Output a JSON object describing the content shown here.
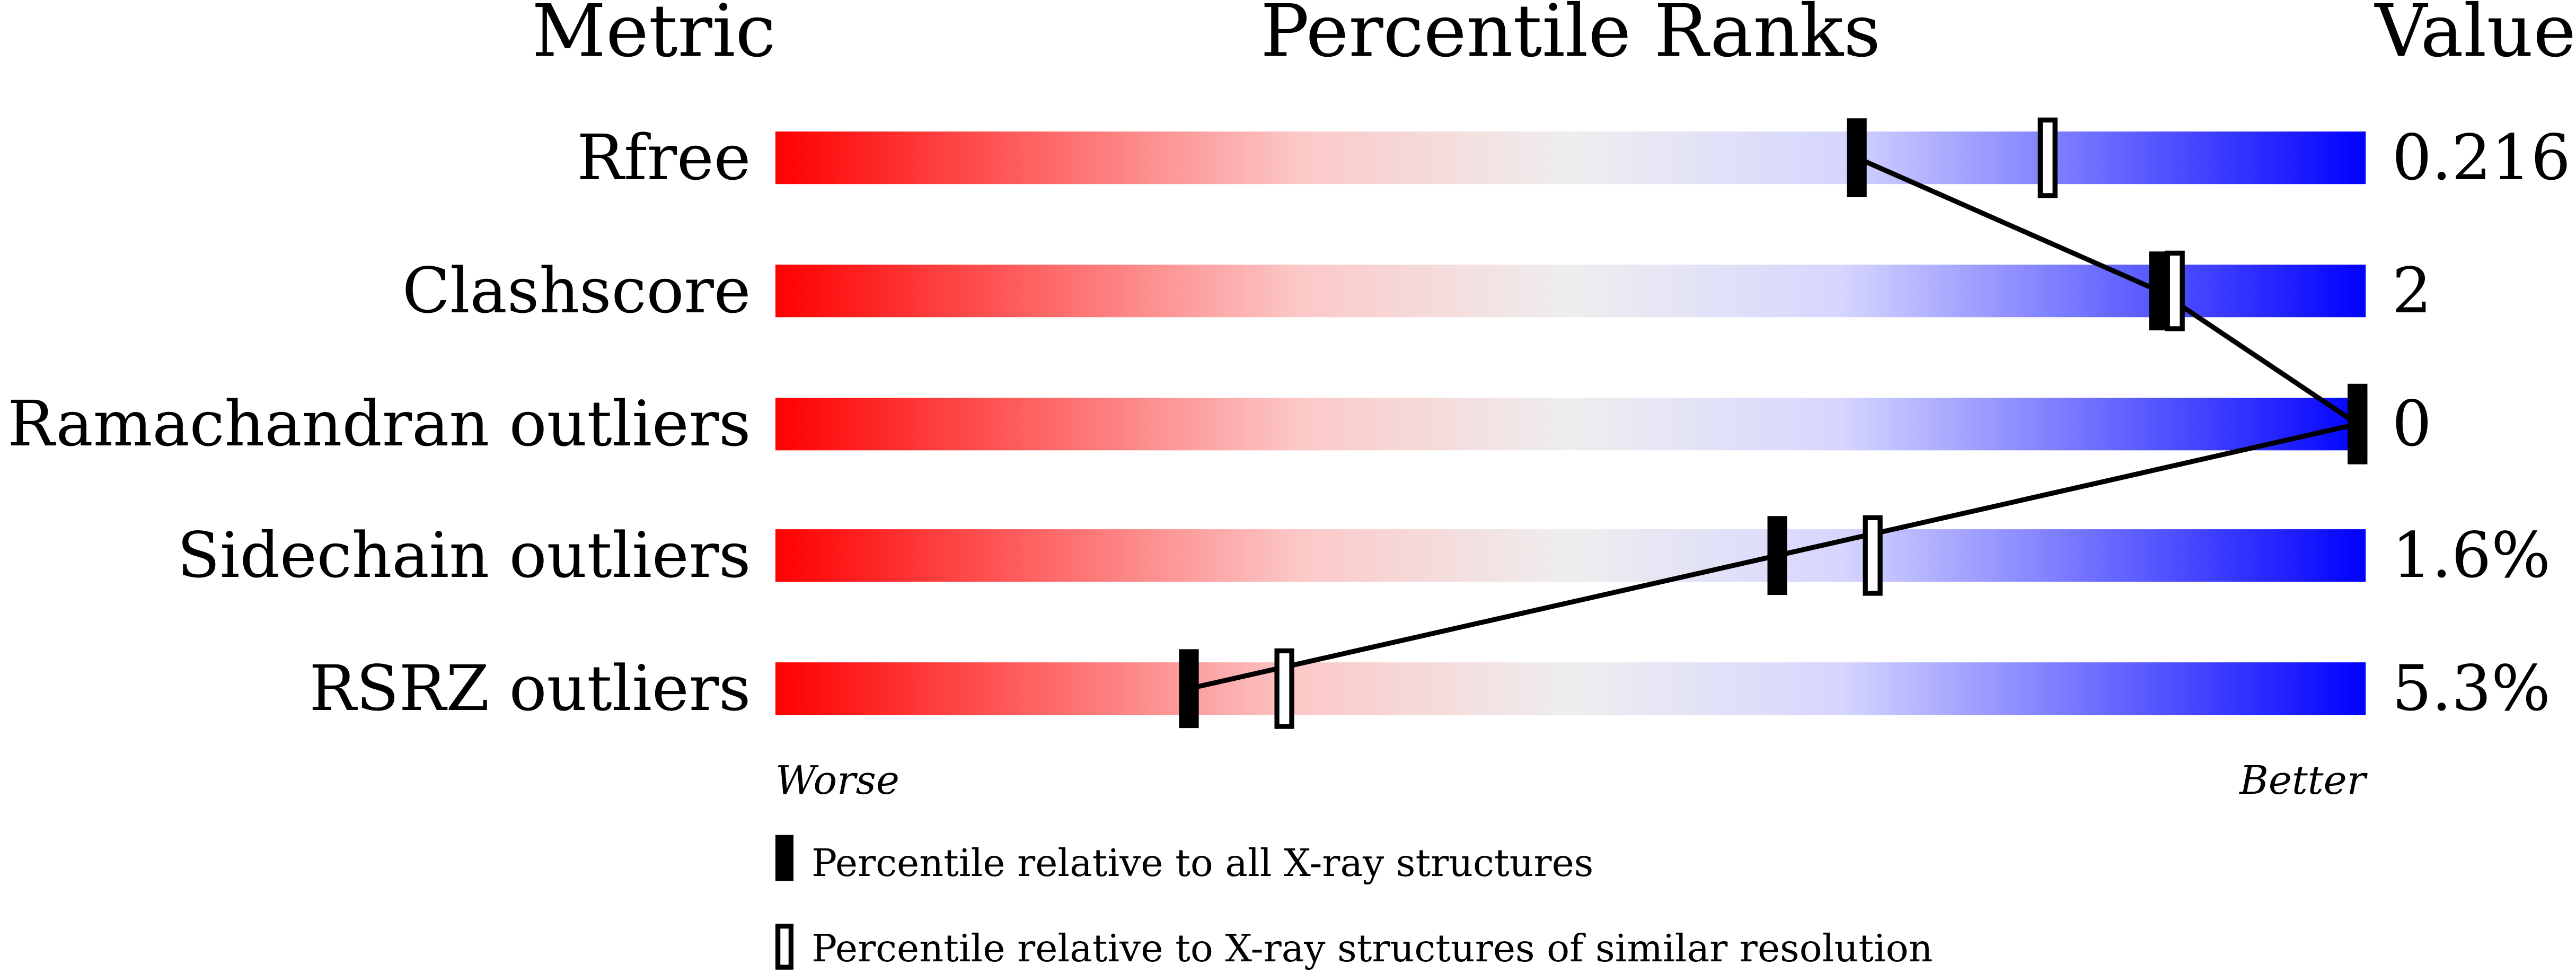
{
  "chart_data": {
    "type": "percentile-slider",
    "headers": {
      "metric": "Metric",
      "ranks": "Percentile Ranks",
      "value": "Value"
    },
    "xlim": [
      0,
      100
    ],
    "axis_labels": {
      "left": "Worse",
      "right": "Better"
    },
    "gradient_colors": [
      "#ff0000",
      "#ffe0e0",
      "#eeeeee",
      "#d8d8ff",
      "#0000ff"
    ],
    "rows": [
      {
        "metric": "Rfree",
        "value": "0.216",
        "percentile_all": 68,
        "percentile_similar": 80
      },
      {
        "metric": "Clashscore",
        "value": "2",
        "percentile_all": 87,
        "percentile_similar": 88
      },
      {
        "metric": "Ramachandran outliers",
        "value": "0",
        "percentile_all": 100,
        "percentile_similar": 100
      },
      {
        "metric": "Sidechain outliers",
        "value": "1.6%",
        "percentile_all": 63,
        "percentile_similar": 69
      },
      {
        "metric": "RSRZ outliers",
        "value": "5.3%",
        "percentile_all": 26,
        "percentile_similar": 32
      }
    ],
    "legend": [
      {
        "marker": "filled",
        "label": "Percentile relative to all X-ray structures"
      },
      {
        "marker": "open",
        "label": "Percentile relative to X-ray structures of similar resolution"
      }
    ]
  }
}
